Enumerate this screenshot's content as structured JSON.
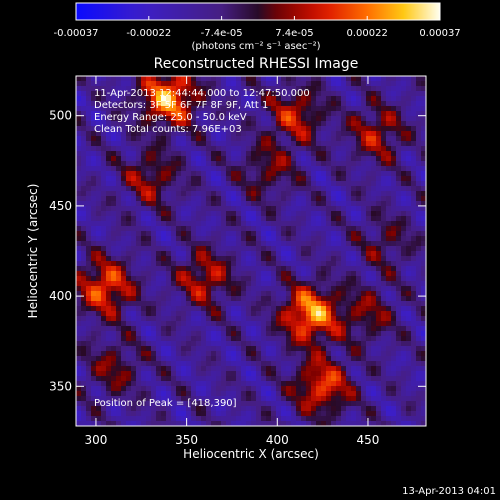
{
  "chart_data": {
    "type": "heatmap",
    "title": "Reconstructed RHESSI Image",
    "xlabel": "Heliocentric X (arcsec)",
    "ylabel": "Heliocentric Y (arcsec)",
    "xlim": [
      289,
      482
    ],
    "ylim": [
      328,
      522
    ],
    "x_ticks": [
      300,
      350,
      400,
      450
    ],
    "y_ticks": [
      350,
      400,
      450,
      500
    ],
    "colorbar": {
      "range": [
        -0.00037,
        0.00037
      ],
      "tick_labels": [
        "-0.00037",
        "-0.00022",
        "-7.4e-05",
        "7.4e-05",
        "0.00022",
        "0.00037"
      ],
      "unit_label": "(photons cm⁻² s⁻¹ asec⁻²)"
    },
    "annotations": [
      "11-Apr-2013 12:44:44.000 to 12:47:50.000",
      "Detectors: 3F 5F 6F 7F 8F 9F, Att 1",
      "Energy Range: 25.0 - 50.0 keV",
      "Clean    Total counts: 7.96E+03"
    ],
    "peak_label": "Position of Peak = [418,390]",
    "peak_position": [
      418,
      390
    ],
    "bright_sources": [
      {
        "x": 340,
        "y": 510,
        "value": 0.00037
      },
      {
        "x": 305,
        "y": 405,
        "value": 0.0003
      },
      {
        "x": 418,
        "y": 390,
        "value": 0.00037
      },
      {
        "x": 425,
        "y": 350,
        "value": 0.00028
      },
      {
        "x": 360,
        "y": 410,
        "value": 0.00022
      },
      {
        "x": 410,
        "y": 500,
        "value": 0.00022
      },
      {
        "x": 455,
        "y": 490,
        "value": 0.0002
      },
      {
        "x": 330,
        "y": 465,
        "value": 0.00018
      },
      {
        "x": 395,
        "y": 470,
        "value": 0.00015
      },
      {
        "x": 460,
        "y": 430,
        "value": 0.00012
      },
      {
        "x": 310,
        "y": 360,
        "value": 0.00015
      },
      {
        "x": 450,
        "y": 390,
        "value": 0.00015
      }
    ],
    "grid": false,
    "legend": "colorbar-top"
  },
  "footer_timestamp": "13-Apr-2013 04:01"
}
